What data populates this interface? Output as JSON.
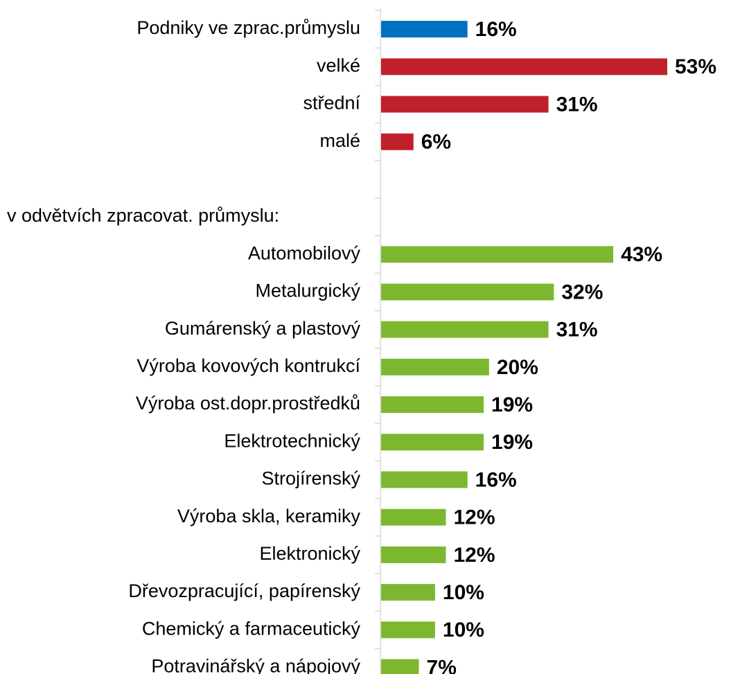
{
  "chart_data": {
    "type": "barh",
    "categories": [
      "Podniky ve zprac.průmyslu",
      "velké",
      "střední",
      "malé",
      null,
      "v odvětvích zpracovat. průmyslu:",
      "Automobilový",
      "Metalurgický",
      "Gumárenský a plastový",
      "Výroba kovových kontrukcí",
      "Výroba ost.dopr.prostředků",
      "Elektrotechnický",
      "Strojírenský",
      "Výroba skla, keramiky",
      "Elektronický",
      "Dřevozpracující, papírenský",
      "Chemický a farmaceutický",
      "Potravinářský a nápojový"
    ],
    "values": [
      16,
      53,
      31,
      6,
      null,
      null,
      43,
      32,
      31,
      20,
      19,
      19,
      16,
      12,
      12,
      10,
      10,
      7
    ],
    "value_labels": [
      "16%",
      "53%",
      "31%",
      "6%",
      null,
      null,
      "43%",
      "32%",
      "31%",
      "20%",
      "19%",
      "19%",
      "16%",
      "12%",
      "12%",
      "10%",
      "10%",
      "7%"
    ],
    "colors": [
      "#0070c0",
      "#c0202a",
      "#c0202a",
      "#c0202a",
      null,
      null,
      "#7cb82f",
      "#7cb82f",
      "#7cb82f",
      "#7cb82f",
      "#7cb82f",
      "#7cb82f",
      "#7cb82f",
      "#7cb82f",
      "#7cb82f",
      "#7cb82f",
      "#7cb82f",
      "#7cb82f"
    ]
  }
}
